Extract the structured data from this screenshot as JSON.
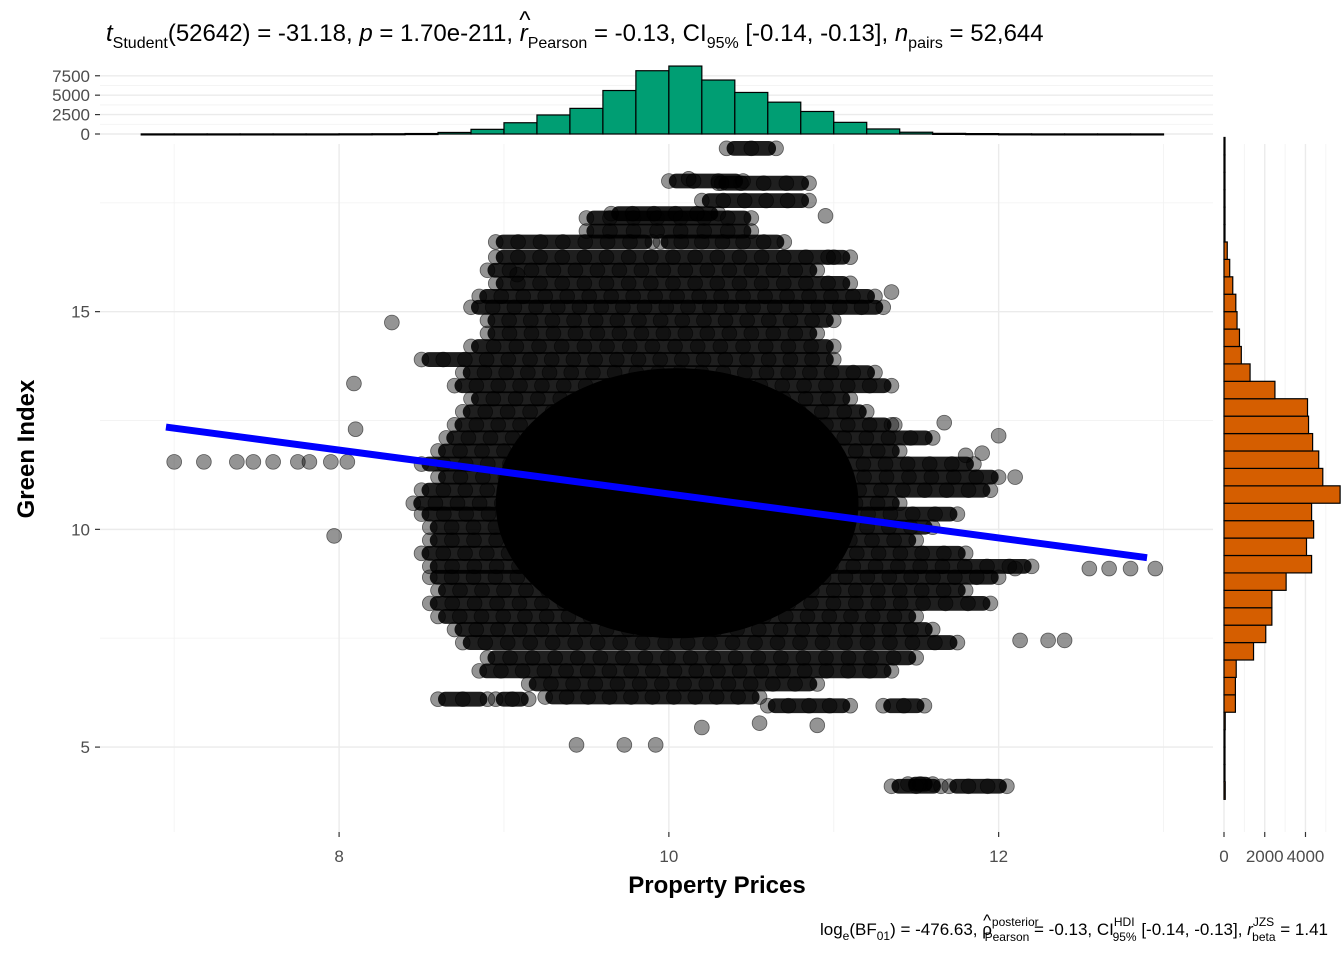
{
  "title": {
    "t_symbol": "t",
    "t_sub": "Student",
    "df": "(52642)",
    "eq": " = ",
    "t_value": "-31.18, ",
    "p_symbol": "p",
    "p_value": "1.70e-211, ",
    "r_symbol": "r",
    "r_hat": "^",
    "r_sub": "Pearson",
    "r_value": "-0.13, CI",
    "ci_sub": "95%",
    "ci_value": " [-0.14, -0.13], ",
    "n_symbol": "n",
    "n_sub": "pairs",
    "n_value": "52,644"
  },
  "caption": {
    "log": "log",
    "log_sub": "e",
    "bf": "(BF",
    "bf_sub": "01",
    "bf_value": ") = -476.63, ",
    "rho": "ρ",
    "rho_hat": "^",
    "rho_sup": "posterior",
    "rho_sub": "Pearson",
    "rho_value": " = -0.13, CI",
    "hdi_sup": "HDI",
    "hdi_sub": "95%",
    "ci_value": " [-0.14, -0.13], ",
    "r_symbol": "r",
    "r_sup": "JZS",
    "r_sub": "beta",
    "r_value": " = 1.41"
  },
  "chart_data": {
    "type": "scatter",
    "xlabel": "Property Prices",
    "ylabel": "Green Index",
    "xlim": [
      6.55,
      13.3
    ],
    "ylim": [
      3.05,
      18.85
    ],
    "x_ticks": [
      8,
      10,
      12
    ],
    "y_ticks": [
      5,
      10,
      15
    ],
    "grid": true,
    "point_color": "#000000",
    "point_opacity": 0.42,
    "regression_line": {
      "color": "#0000ff",
      "x": [
        6.95,
        12.9
      ],
      "y": [
        12.35,
        9.35
      ]
    },
    "outlier_points": [
      {
        "x": 7.0,
        "y": 11.55
      },
      {
        "x": 7.18,
        "y": 11.55
      },
      {
        "x": 7.38,
        "y": 11.55
      },
      {
        "x": 7.48,
        "y": 11.55
      },
      {
        "x": 7.6,
        "y": 11.55
      },
      {
        "x": 7.75,
        "y": 11.55
      },
      {
        "x": 7.82,
        "y": 11.55
      },
      {
        "x": 7.95,
        "y": 11.55
      },
      {
        "x": 8.05,
        "y": 11.55
      },
      {
        "x": 7.97,
        "y": 9.85
      },
      {
        "x": 8.09,
        "y": 13.35
      },
      {
        "x": 8.32,
        "y": 14.75
      },
      {
        "x": 8.1,
        "y": 12.3
      },
      {
        "x": 12.55,
        "y": 9.1
      },
      {
        "x": 12.67,
        "y": 9.1
      },
      {
        "x": 12.8,
        "y": 9.1
      },
      {
        "x": 12.95,
        "y": 9.1
      },
      {
        "x": 11.8,
        "y": 11.7
      },
      {
        "x": 12.0,
        "y": 12.15
      },
      {
        "x": 11.67,
        "y": 12.45
      },
      {
        "x": 11.37,
        "y": 12.4
      },
      {
        "x": 11.9,
        "y": 11.75
      },
      {
        "x": 12.1,
        "y": 11.2
      },
      {
        "x": 12.13,
        "y": 7.45
      },
      {
        "x": 12.3,
        "y": 7.45
      },
      {
        "x": 12.4,
        "y": 7.45
      },
      {
        "x": 12.1,
        "y": 9.1
      },
      {
        "x": 9.44,
        "y": 5.05
      },
      {
        "x": 9.73,
        "y": 5.05
      },
      {
        "x": 9.92,
        "y": 5.05
      },
      {
        "x": 10.2,
        "y": 5.45
      },
      {
        "x": 10.55,
        "y": 5.55
      },
      {
        "x": 10.9,
        "y": 5.5
      },
      {
        "x": 10.12,
        "y": 18.05
      },
      {
        "x": 10.32,
        "y": 17.95
      },
      {
        "x": 10.95,
        "y": 17.2
      },
      {
        "x": 11.0,
        "y": 16.25
      },
      {
        "x": 11.35,
        "y": 15.45
      },
      {
        "x": 9.08,
        "y": 15.85
      }
    ],
    "point_rows": [
      {
        "y": 4.1,
        "x_min": 11.35,
        "x_max": 11.65
      },
      {
        "y": 4.1,
        "x_min": 11.7,
        "x_max": 12.05
      },
      {
        "y": 4.15,
        "x_min": 11.45,
        "x_max": 11.6
      },
      {
        "y": 5.95,
        "x_min": 10.6,
        "x_max": 11.1
      },
      {
        "x_min": 11.3,
        "x_max": 11.55,
        "y": 5.95
      },
      {
        "y": 6.1,
        "x_min": 8.6,
        "x_max": 8.9
      },
      {
        "y": 6.1,
        "x_min": 8.95,
        "x_max": 9.15
      },
      {
        "y": 6.15,
        "x_min": 9.25,
        "x_max": 10.55
      },
      {
        "y": 6.45,
        "x_min": 9.15,
        "x_max": 10.9
      },
      {
        "y": 6.75,
        "x_min": 8.85,
        "x_max": 11.35
      },
      {
        "y": 7.05,
        "x_min": 8.9,
        "x_max": 11.5
      },
      {
        "y": 7.4,
        "x_min": 8.75,
        "x_max": 11.75
      },
      {
        "y": 7.7,
        "x_min": 8.7,
        "x_max": 11.6
      },
      {
        "y": 8.0,
        "x_min": 8.6,
        "x_max": 11.5
      },
      {
        "y": 8.3,
        "x_min": 8.55,
        "x_max": 11.95
      },
      {
        "y": 8.6,
        "x_min": 8.6,
        "x_max": 11.8
      },
      {
        "y": 8.9,
        "x_min": 8.55,
        "x_max": 12.0
      },
      {
        "y": 9.15,
        "x_min": 8.55,
        "x_max": 12.2
      },
      {
        "y": 9.45,
        "x_min": 8.5,
        "x_max": 11.8
      },
      {
        "y": 9.75,
        "x_min": 8.55,
        "x_max": 11.5
      },
      {
        "y": 10.05,
        "x_min": 8.55,
        "x_max": 11.6
      },
      {
        "y": 10.35,
        "x_min": 8.5,
        "x_max": 11.75
      },
      {
        "y": 10.6,
        "x_min": 8.45,
        "x_max": 11.4
      },
      {
        "y": 10.9,
        "x_min": 8.5,
        "x_max": 11.95
      },
      {
        "y": 11.2,
        "x_min": 8.6,
        "x_max": 12.0
      },
      {
        "y": 11.5,
        "x_min": 8.5,
        "x_max": 11.85
      },
      {
        "y": 11.8,
        "x_min": 8.6,
        "x_max": 11.4
      },
      {
        "y": 12.1,
        "x_min": 8.65,
        "x_max": 11.6
      },
      {
        "y": 12.4,
        "x_min": 8.7,
        "x_max": 11.35
      },
      {
        "y": 12.7,
        "x_min": 8.75,
        "x_max": 11.2
      },
      {
        "y": 13.0,
        "x_min": 8.8,
        "x_max": 11.1
      },
      {
        "y": 13.3,
        "x_min": 8.7,
        "x_max": 11.35
      },
      {
        "y": 13.6,
        "x_min": 8.75,
        "x_max": 11.25
      },
      {
        "y": 13.9,
        "x_min": 8.5,
        "x_max": 11.0
      },
      {
        "y": 14.2,
        "x_min": 8.8,
        "x_max": 11.0
      },
      {
        "y": 14.5,
        "x_min": 8.9,
        "x_max": 10.9
      },
      {
        "y": 14.8,
        "x_min": 8.9,
        "x_max": 11.0
      },
      {
        "y": 15.1,
        "x_min": 8.8,
        "x_max": 11.3
      },
      {
        "y": 15.35,
        "x_min": 8.85,
        "x_max": 11.25
      },
      {
        "y": 15.65,
        "x_min": 8.95,
        "x_max": 11.1
      },
      {
        "y": 15.95,
        "x_min": 8.9,
        "x_max": 10.9
      },
      {
        "y": 16.25,
        "x_min": 8.95,
        "x_max": 11.1
      },
      {
        "y": 16.6,
        "x_min": 8.95,
        "x_max": 9.9
      },
      {
        "y": 16.6,
        "x_min": 9.95,
        "x_max": 10.7
      },
      {
        "y": 16.85,
        "x_min": 9.5,
        "x_max": 10.5
      },
      {
        "y": 17.15,
        "x_min": 9.5,
        "x_max": 10.5
      },
      {
        "y": 17.25,
        "x_min": 9.65,
        "x_max": 10.3
      },
      {
        "y": 17.55,
        "x_min": 10.2,
        "x_max": 10.85
      },
      {
        "y": 17.95,
        "x_min": 10.3,
        "x_max": 10.85
      },
      {
        "y": 18.0,
        "x_min": 10.0,
        "x_max": 10.45
      },
      {
        "y": 18.75,
        "x_min": 10.35,
        "x_max": 10.65
      }
    ],
    "core_ellipse": {
      "cx": 10.05,
      "cy": 10.6,
      "rx": 1.1,
      "ry": 3.1
    },
    "top_histogram": {
      "fill": "#009e73",
      "ylim": [
        0,
        8500
      ],
      "y_ticks": [
        0,
        2500,
        5000,
        7500
      ],
      "bins": [
        {
          "x0": 6.8,
          "x1": 7.0,
          "count": 10
        },
        {
          "x0": 7.0,
          "x1": 7.2,
          "count": 10
        },
        {
          "x0": 7.2,
          "x1": 7.4,
          "count": 10
        },
        {
          "x0": 7.4,
          "x1": 7.6,
          "count": 10
        },
        {
          "x0": 7.6,
          "x1": 7.8,
          "count": 10
        },
        {
          "x0": 7.8,
          "x1": 8.0,
          "count": 10
        },
        {
          "x0": 8.0,
          "x1": 8.2,
          "count": 20
        },
        {
          "x0": 8.2,
          "x1": 8.4,
          "count": 30
        },
        {
          "x0": 8.4,
          "x1": 8.6,
          "count": 60
        },
        {
          "x0": 8.6,
          "x1": 8.8,
          "count": 200
        },
        {
          "x0": 8.8,
          "x1": 9.0,
          "count": 600
        },
        {
          "x0": 9.0,
          "x1": 9.2,
          "count": 1450
        },
        {
          "x0": 9.2,
          "x1": 9.4,
          "count": 2450
        },
        {
          "x0": 9.4,
          "x1": 9.6,
          "count": 3300
        },
        {
          "x0": 9.6,
          "x1": 9.8,
          "count": 5600
        },
        {
          "x0": 9.8,
          "x1": 10.0,
          "count": 8150
        },
        {
          "x0": 10.0,
          "x1": 10.2,
          "count": 8750
        },
        {
          "x0": 10.2,
          "x1": 10.4,
          "count": 6950
        },
        {
          "x0": 10.4,
          "x1": 10.6,
          "count": 5350
        },
        {
          "x0": 10.6,
          "x1": 10.8,
          "count": 4100
        },
        {
          "x0": 10.8,
          "x1": 11.0,
          "count": 2900
        },
        {
          "x0": 11.0,
          "x1": 11.2,
          "count": 1500
        },
        {
          "x0": 11.2,
          "x1": 11.4,
          "count": 650
        },
        {
          "x0": 11.4,
          "x1": 11.6,
          "count": 230
        },
        {
          "x0": 11.6,
          "x1": 11.8,
          "count": 80
        },
        {
          "x0": 11.8,
          "x1": 12.0,
          "count": 50
        },
        {
          "x0": 12.0,
          "x1": 12.2,
          "count": 20
        },
        {
          "x0": 12.2,
          "x1": 12.4,
          "count": 10
        },
        {
          "x0": 12.4,
          "x1": 12.6,
          "count": 10
        },
        {
          "x0": 12.6,
          "x1": 12.8,
          "count": 10
        },
        {
          "x0": 12.8,
          "x1": 13.0,
          "count": 10
        }
      ]
    },
    "side_histogram": {
      "fill": "#d55e00",
      "xlim": [
        0,
        5400
      ],
      "x_ticks": [
        0,
        2000,
        4000
      ],
      "x_tick_labels": [
        "0",
        "2000",
        "4000"
      ],
      "bins": [
        {
          "y0": 3.8,
          "y1": 4.2,
          "count": 60
        },
        {
          "y0": 4.2,
          "y1": 4.6,
          "count": 30
        },
        {
          "y0": 4.6,
          "y1": 5.0,
          "count": 20
        },
        {
          "y0": 5.0,
          "y1": 5.4,
          "count": 40
        },
        {
          "y0": 5.4,
          "y1": 5.8,
          "count": 60
        },
        {
          "y0": 5.8,
          "y1": 6.2,
          "count": 560
        },
        {
          "y0": 6.2,
          "y1": 6.6,
          "count": 560
        },
        {
          "y0": 6.6,
          "y1": 7.0,
          "count": 600
        },
        {
          "y0": 7.0,
          "y1": 7.4,
          "count": 1450
        },
        {
          "y0": 7.4,
          "y1": 7.8,
          "count": 2050
        },
        {
          "y0": 7.8,
          "y1": 8.2,
          "count": 2350
        },
        {
          "y0": 8.2,
          "y1": 8.6,
          "count": 2350
        },
        {
          "y0": 8.6,
          "y1": 9.0,
          "count": 3050
        },
        {
          "y0": 9.0,
          "y1": 9.4,
          "count": 4300
        },
        {
          "y0": 9.4,
          "y1": 9.8,
          "count": 4050
        },
        {
          "y0": 9.8,
          "y1": 10.2,
          "count": 4400
        },
        {
          "y0": 10.2,
          "y1": 10.6,
          "count": 4300
        },
        {
          "y0": 10.6,
          "y1": 11.0,
          "count": 5700
        },
        {
          "y0": 11.0,
          "y1": 11.4,
          "count": 4850
        },
        {
          "y0": 11.4,
          "y1": 11.8,
          "count": 4650
        },
        {
          "y0": 11.8,
          "y1": 12.2,
          "count": 4350
        },
        {
          "y0": 12.2,
          "y1": 12.6,
          "count": 4150
        },
        {
          "y0": 12.6,
          "y1": 13.0,
          "count": 4100
        },
        {
          "y0": 13.0,
          "y1": 13.4,
          "count": 2500
        },
        {
          "y0": 13.4,
          "y1": 13.8,
          "count": 1280
        },
        {
          "y0": 13.8,
          "y1": 14.2,
          "count": 850
        },
        {
          "y0": 14.2,
          "y1": 14.6,
          "count": 760
        },
        {
          "y0": 14.6,
          "y1": 15.0,
          "count": 640
        },
        {
          "y0": 15.0,
          "y1": 15.4,
          "count": 580
        },
        {
          "y0": 15.4,
          "y1": 15.8,
          "count": 430
        },
        {
          "y0": 15.8,
          "y1": 16.2,
          "count": 280
        },
        {
          "y0": 16.2,
          "y1": 16.6,
          "count": 160
        },
        {
          "y0": 16.6,
          "y1": 17.0,
          "count": 40
        },
        {
          "y0": 17.0,
          "y1": 17.4,
          "count": 50
        },
        {
          "y0": 17.4,
          "y1": 17.8,
          "count": 20
        },
        {
          "y0": 17.8,
          "y1": 18.2,
          "count": 15
        },
        {
          "y0": 18.2,
          "y1": 18.6,
          "count": 15
        },
        {
          "y0": 18.6,
          "y1": 19.0,
          "count": 15
        }
      ]
    }
  }
}
